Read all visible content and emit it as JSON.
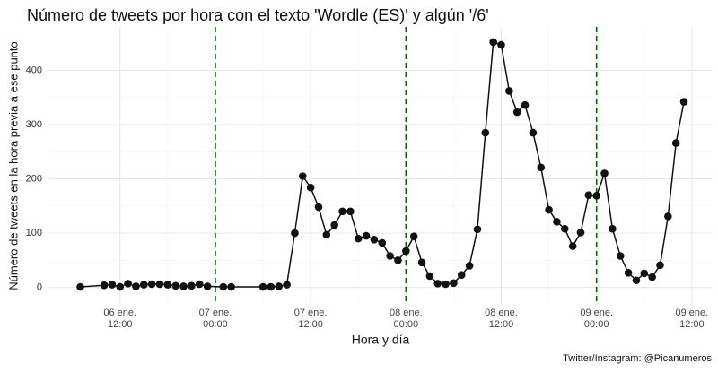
{
  "chart_data": {
    "type": "line",
    "title": "Número de tweets por hora con el texto 'Wordle (ES)' y algún '/6'",
    "xlabel": "Hora y día",
    "ylabel": "Número de tweets en la hora previa a ese punto",
    "caption": "Twitter/Instagram: @Picanumeros",
    "x": [
      7,
      10,
      11,
      12,
      13,
      14,
      15,
      16,
      17,
      18,
      19,
      20,
      21,
      22,
      23,
      25,
      26,
      30,
      31,
      32,
      33,
      34,
      35,
      36,
      37,
      38,
      39,
      40,
      41,
      42,
      43,
      44,
      45,
      46,
      47,
      48,
      49,
      50,
      51,
      52,
      53,
      54,
      55,
      56,
      57,
      58,
      59,
      60,
      61,
      62,
      63,
      64,
      65,
      66,
      67,
      68,
      69,
      70,
      71,
      72,
      73,
      74,
      75,
      76,
      77,
      78,
      79,
      80,
      81,
      82,
      83
    ],
    "values": [
      1,
      4,
      5,
      1,
      7,
      2,
      5,
      6,
      6,
      5,
      3,
      2,
      3,
      6,
      2,
      1,
      1,
      1,
      1,
      2,
      5,
      100,
      205,
      184,
      148,
      97,
      115,
      140,
      140,
      90,
      95,
      88,
      82,
      58,
      50,
      67,
      94,
      46,
      21,
      7,
      6,
      8,
      23,
      40,
      107,
      285,
      452,
      447,
      362,
      323,
      336,
      285,
      221,
      143,
      121,
      108,
      76,
      101,
      170,
      169,
      210,
      108,
      58,
      27,
      13,
      26,
      19,
      41,
      131,
      266,
      342
    ],
    "color": "#111111",
    "xlim": [
      3.1,
      86.5
    ],
    "xticks": [
      {
        "value": 12,
        "label": "06 ene.\n12:00"
      },
      {
        "value": 24,
        "label": "07 ene.\n00:00"
      },
      {
        "value": 36,
        "label": "07 ene.\n12:00"
      },
      {
        "value": 48,
        "label": "08 ene.\n00:00"
      },
      {
        "value": 60,
        "label": "08 ene.\n12:00"
      },
      {
        "value": 72,
        "label": "09 ene.\n00:00"
      },
      {
        "value": 84,
        "label": "09 ene.\n12:00"
      }
    ],
    "ylim": [
      -32,
      480
    ],
    "yticks": [
      0,
      100,
      200,
      300,
      400
    ],
    "vlines": [
      24,
      48,
      72
    ],
    "vline_color": "#006400",
    "grid": true
  }
}
